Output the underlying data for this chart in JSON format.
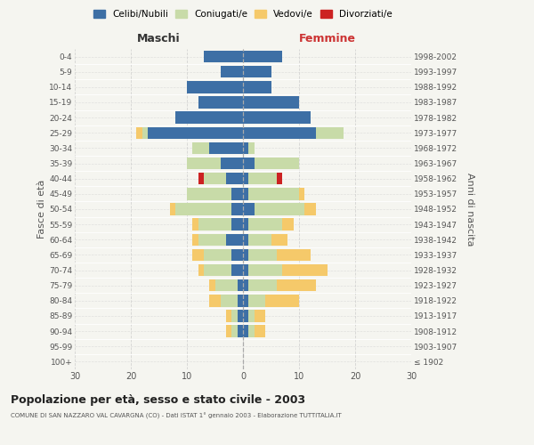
{
  "age_groups": [
    "100+",
    "95-99",
    "90-94",
    "85-89",
    "80-84",
    "75-79",
    "70-74",
    "65-69",
    "60-64",
    "55-59",
    "50-54",
    "45-49",
    "40-44",
    "35-39",
    "30-34",
    "25-29",
    "20-24",
    "15-19",
    "10-14",
    "5-9",
    "0-4"
  ],
  "birth_years": [
    "≤ 1902",
    "1903-1907",
    "1908-1912",
    "1913-1917",
    "1918-1922",
    "1923-1927",
    "1928-1932",
    "1933-1937",
    "1938-1942",
    "1943-1947",
    "1948-1952",
    "1953-1957",
    "1958-1962",
    "1963-1967",
    "1968-1972",
    "1973-1977",
    "1978-1982",
    "1983-1987",
    "1988-1992",
    "1993-1997",
    "1998-2002"
  ],
  "males": {
    "celibi": [
      0,
      0,
      1,
      1,
      1,
      1,
      2,
      2,
      3,
      2,
      2,
      2,
      3,
      4,
      6,
      17,
      12,
      8,
      10,
      4,
      7
    ],
    "coniugati": [
      0,
      0,
      1,
      1,
      3,
      4,
      5,
      5,
      5,
      6,
      10,
      8,
      4,
      6,
      3,
      1,
      0,
      0,
      0,
      0,
      0
    ],
    "vedovi": [
      0,
      0,
      1,
      1,
      2,
      1,
      1,
      2,
      1,
      1,
      1,
      0,
      0,
      0,
      0,
      1,
      0,
      0,
      0,
      0,
      0
    ],
    "divorziati": [
      0,
      0,
      0,
      0,
      0,
      0,
      0,
      0,
      0,
      0,
      0,
      0,
      1,
      0,
      0,
      0,
      0,
      0,
      0,
      0,
      0
    ]
  },
  "females": {
    "nubili": [
      0,
      0,
      1,
      1,
      1,
      1,
      1,
      1,
      1,
      1,
      2,
      1,
      1,
      2,
      1,
      13,
      12,
      10,
      5,
      5,
      7
    ],
    "coniugate": [
      0,
      0,
      1,
      1,
      3,
      5,
      6,
      5,
      4,
      6,
      9,
      9,
      5,
      8,
      1,
      5,
      0,
      0,
      0,
      0,
      0
    ],
    "vedove": [
      0,
      0,
      2,
      2,
      6,
      7,
      8,
      6,
      3,
      2,
      2,
      1,
      0,
      0,
      0,
      0,
      0,
      0,
      0,
      0,
      0
    ],
    "divorziate": [
      0,
      0,
      0,
      0,
      0,
      0,
      0,
      0,
      0,
      0,
      0,
      0,
      1,
      0,
      0,
      0,
      0,
      0,
      0,
      0,
      0
    ]
  },
  "colors": {
    "celibi": "#3d6fa5",
    "coniugati": "#c8dba8",
    "vedovi": "#f5c96a",
    "divorziati": "#cc2222"
  },
  "xlim": 30,
  "title": "Popolazione per età, sesso e stato civile - 2003",
  "subtitle": "COMUNE DI SAN NAZZARO VAL CAVARGNA (CO) - Dati ISTAT 1° gennaio 2003 - Elaborazione TUTTITALIA.IT",
  "ylabel_left": "Fasce di età",
  "ylabel_right": "Anni di nascita",
  "xlabel_left": "Maschi",
  "xlabel_right": "Femmine",
  "legend_labels": [
    "Celibi/Nubili",
    "Coniugati/e",
    "Vedovi/e",
    "Divorziati/e"
  ],
  "bg_color": "#f5f5f0",
  "grid_color": "#cccccc"
}
